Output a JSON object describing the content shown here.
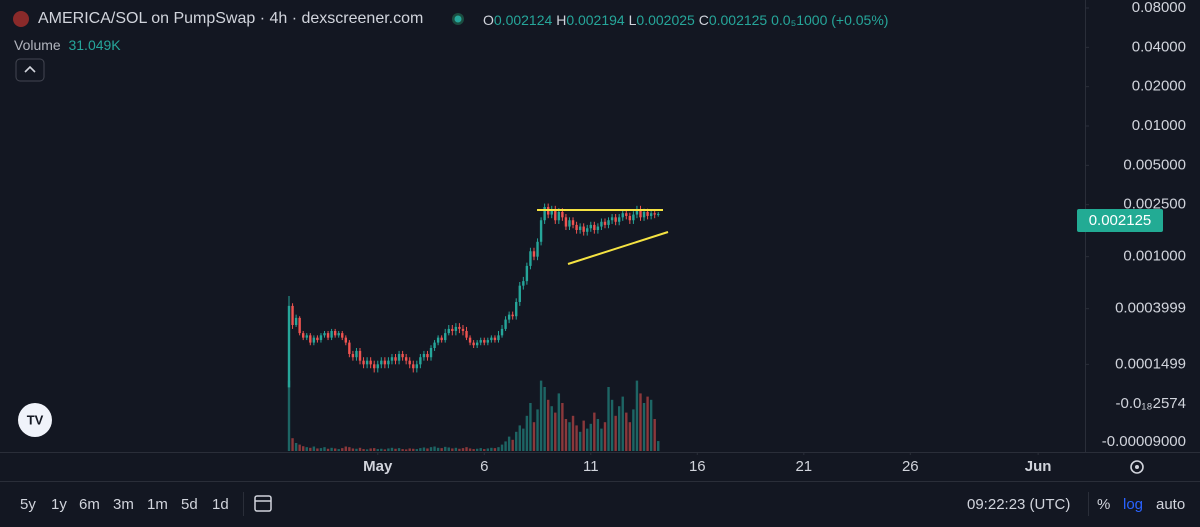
{
  "chart_data": {
    "type": "candlestick",
    "title": "AMERICA/SOL on PumpSwap · 4h · dexscreener.com",
    "o_label": "O",
    "h_label": "H",
    "l_label": "L",
    "c_label": "C",
    "change_label": "0.0₅1000 (+0.05%)",
    "volume_label": "Volume",
    "volume_value_label": "31.049K",
    "log_scale": true,
    "grid": false,
    "up_color": "#26a69a",
    "down_color": "#ef5350",
    "open": [
      0.0001,
      0.00042,
      0.0003,
      0.00034,
      0.00026,
      0.00024,
      0.00025,
      0.00022,
      0.00024,
      0.00023,
      0.00025,
      0.00026,
      0.00024,
      0.00027,
      0.00025,
      0.00026,
      0.00024,
      0.00022,
      0.00018,
      0.00017,
      0.00019,
      0.00016,
      0.00015,
      0.00016,
      0.00015,
      0.00014,
      0.00015,
      0.00016,
      0.00015,
      0.00016,
      0.00017,
      0.00016,
      0.00018,
      0.00017,
      0.00016,
      0.00015,
      0.00014,
      0.00015,
      0.00017,
      0.00018,
      0.00017,
      0.0002,
      0.00022,
      0.00024,
      0.00023,
      0.00026,
      0.00028,
      0.00027,
      0.00029,
      0.00028,
      0.00027,
      0.00024,
      0.00022,
      0.00021,
      0.00022,
      0.00023,
      0.00022,
      0.00023,
      0.00024,
      0.00023,
      0.00025,
      0.00028,
      0.00033,
      0.00036,
      0.00035,
      0.00045,
      0.0006,
      0.00065,
      0.00085,
      0.0011,
      0.001,
      0.0013,
      0.0019,
      0.0024,
      0.0021,
      0.0023,
      0.0019,
      0.0022,
      0.002,
      0.0017,
      0.0019,
      0.00175,
      0.0016,
      0.0017,
      0.00155,
      0.00165,
      0.00175,
      0.0016,
      0.0017,
      0.00185,
      0.00175,
      0.0019,
      0.002,
      0.00185,
      0.002,
      0.00215,
      0.00205,
      0.0019,
      0.0021,
      0.0023,
      0.002,
      0.0022,
      0.00205,
      0.00215,
      0.002124
    ],
    "high": [
      0.0005,
      0.00044,
      0.00036,
      0.00035,
      0.00027,
      0.00026,
      0.00026,
      0.00025,
      0.00025,
      0.00026,
      0.00027,
      0.00027,
      0.00028,
      0.00028,
      0.00027,
      0.00027,
      0.00025,
      0.00023,
      0.00019,
      0.0002,
      0.0002,
      0.00017,
      0.00017,
      0.00017,
      0.00016,
      0.00016,
      0.00017,
      0.00017,
      0.00017,
      0.00018,
      0.00018,
      0.00019,
      0.00019,
      0.00018,
      0.00017,
      0.00016,
      0.00016,
      0.00018,
      0.00019,
      0.00019,
      0.00021,
      0.00023,
      0.00025,
      0.00025,
      0.00028,
      0.0003,
      0.0003,
      0.00031,
      0.00031,
      0.0003,
      0.00029,
      0.00025,
      0.00023,
      0.00023,
      0.00024,
      0.00024,
      0.00024,
      0.00025,
      0.00025,
      0.00027,
      0.0003,
      0.00035,
      0.00038,
      0.00038,
      0.00048,
      0.00064,
      0.0007,
      0.0009,
      0.00117,
      0.00117,
      0.00138,
      0.002,
      0.00255,
      0.00255,
      0.00245,
      0.00245,
      0.00235,
      0.00235,
      0.00212,
      0.002,
      0.002,
      0.00185,
      0.0018,
      0.0018,
      0.00175,
      0.00185,
      0.00185,
      0.0018,
      0.00196,
      0.00196,
      0.002,
      0.00212,
      0.00212,
      0.00212,
      0.00228,
      0.00228,
      0.00217,
      0.00223,
      0.00245,
      0.00245,
      0.00233,
      0.00233,
      0.00228,
      0.00228,
      0.002194
    ],
    "low": [
      0.0001,
      0.00028,
      0.00029,
      0.00025,
      0.00023,
      0.00023,
      0.00021,
      0.00021,
      0.00022,
      0.00022,
      0.00024,
      0.00023,
      0.00023,
      0.00024,
      0.00024,
      0.00023,
      0.00021,
      0.00017,
      0.00016,
      0.00016,
      0.00015,
      0.00014,
      0.00014,
      0.00014,
      0.00013,
      0.00013,
      0.00014,
      0.00014,
      0.00014,
      0.00015,
      0.00015,
      0.00015,
      0.00016,
      0.00015,
      0.00014,
      0.00013,
      0.00013,
      0.00014,
      0.00016,
      0.00016,
      0.00016,
      0.00019,
      0.00021,
      0.00022,
      0.00022,
      0.00025,
      0.00025,
      0.00025,
      0.00026,
      0.00025,
      0.00023,
      0.00021,
      0.0002,
      0.0002,
      0.00021,
      0.00021,
      0.00021,
      0.00022,
      0.00022,
      0.00022,
      0.00024,
      0.00027,
      0.00031,
      0.00033,
      0.00033,
      0.00042,
      0.00056,
      0.00061,
      0.0008,
      0.00094,
      0.00094,
      0.00122,
      0.00178,
      0.00197,
      0.00197,
      0.00178,
      0.00178,
      0.00188,
      0.0016,
      0.0016,
      0.00165,
      0.0015,
      0.0015,
      0.00145,
      0.00145,
      0.00155,
      0.0015,
      0.0015,
      0.0016,
      0.00165,
      0.00165,
      0.00178,
      0.00174,
      0.00174,
      0.00188,
      0.00193,
      0.00178,
      0.00178,
      0.00197,
      0.00188,
      0.00188,
      0.00193,
      0.00193,
      0.00197,
      0.002025
    ],
    "close": [
      0.00042,
      0.0003,
      0.00034,
      0.00026,
      0.00024,
      0.00025,
      0.00022,
      0.00024,
      0.00023,
      0.00025,
      0.00026,
      0.00024,
      0.00027,
      0.00025,
      0.00026,
      0.00024,
      0.00022,
      0.00018,
      0.00017,
      0.00019,
      0.00016,
      0.00015,
      0.00016,
      0.00015,
      0.00014,
      0.00015,
      0.00016,
      0.00015,
      0.00016,
      0.00017,
      0.00016,
      0.00018,
      0.00017,
      0.00016,
      0.00015,
      0.00014,
      0.00015,
      0.00017,
      0.00018,
      0.00017,
      0.0002,
      0.00022,
      0.00024,
      0.00023,
      0.00026,
      0.00028,
      0.00027,
      0.00029,
      0.00028,
      0.00027,
      0.00024,
      0.00022,
      0.00021,
      0.00022,
      0.00023,
      0.00022,
      0.00023,
      0.00024,
      0.00023,
      0.00025,
      0.00028,
      0.00033,
      0.00036,
      0.00035,
      0.00045,
      0.0006,
      0.00065,
      0.00085,
      0.0011,
      0.001,
      0.0013,
      0.0019,
      0.0024,
      0.0021,
      0.0023,
      0.0019,
      0.0022,
      0.002,
      0.0017,
      0.0019,
      0.00175,
      0.0016,
      0.0017,
      0.00155,
      0.00165,
      0.00175,
      0.0016,
      0.0017,
      0.00185,
      0.00175,
      0.0019,
      0.002,
      0.00185,
      0.002,
      0.00215,
      0.00205,
      0.0019,
      0.0021,
      0.0023,
      0.002,
      0.0022,
      0.00205,
      0.00215,
      0.0021,
      0.002125
    ],
    "volume": [
      220000,
      40000,
      25000,
      20000,
      15000,
      12000,
      10000,
      14000,
      8000,
      9000,
      12000,
      7000,
      10000,
      8000,
      6000,
      9000,
      14000,
      12000,
      8000,
      7000,
      10000,
      6000,
      5000,
      8000,
      9000,
      6000,
      7000,
      5000,
      8000,
      10000,
      7000,
      9000,
      6000,
      5000,
      8000,
      7000,
      6000,
      9000,
      11000,
      8000,
      12000,
      14000,
      10000,
      9000,
      13000,
      11000,
      8000,
      10000,
      7000,
      9000,
      12000,
      8000,
      6000,
      7000,
      9000,
      6000,
      8000,
      10000,
      9000,
      12000,
      20000,
      30000,
      45000,
      35000,
      60000,
      80000,
      70000,
      110000,
      150000,
      90000,
      130000,
      220000,
      200000,
      160000,
      140000,
      120000,
      180000,
      150000,
      100000,
      90000,
      110000,
      80000,
      60000,
      95000,
      70000,
      85000,
      120000,
      100000,
      70000,
      90000,
      200000,
      160000,
      110000,
      140000,
      170000,
      120000,
      90000,
      130000,
      220000,
      180000,
      150000,
      170000,
      160000,
      100000,
      31049
    ],
    "vlim": [
      0,
      250000
    ],
    "xlim": [
      -81.4,
      224.2
    ],
    "xticks": [
      {
        "value": 25,
        "label": "May"
      },
      {
        "value": 55,
        "label": "6"
      },
      {
        "value": 85,
        "label": "11"
      },
      {
        "value": 115,
        "label": "16"
      },
      {
        "value": 145,
        "label": "21"
      },
      {
        "value": 175,
        "label": "26"
      },
      {
        "value": 211,
        "label": "Jun"
      }
    ],
    "ylim": [
      8e-05,
      0.08
    ],
    "yticks": [
      {
        "value": 0.08,
        "label": "0.08000"
      },
      {
        "value": 0.04,
        "label": "0.04000"
      },
      {
        "value": 0.02,
        "label": "0.02000"
      },
      {
        "value": 0.01,
        "label": "0.01000"
      },
      {
        "value": 0.005,
        "label": "0.005000"
      },
      {
        "value": 0.0025,
        "label": "0.002500"
      },
      {
        "value": 0.001,
        "label": "0.001000"
      },
      0.0003999,
      0.0001499
    ],
    "extra_axis_labels": [
      "-0.0₁₈2574",
      "-0.00009000"
    ]
  },
  "toolbar": {
    "ranges": [
      "5y",
      "1y",
      "6m",
      "3m",
      "1m",
      "5d",
      "1d"
    ],
    "time": "09:22:23 (UTC)",
    "percent": "%",
    "log": "log",
    "auto": "auto"
  }
}
